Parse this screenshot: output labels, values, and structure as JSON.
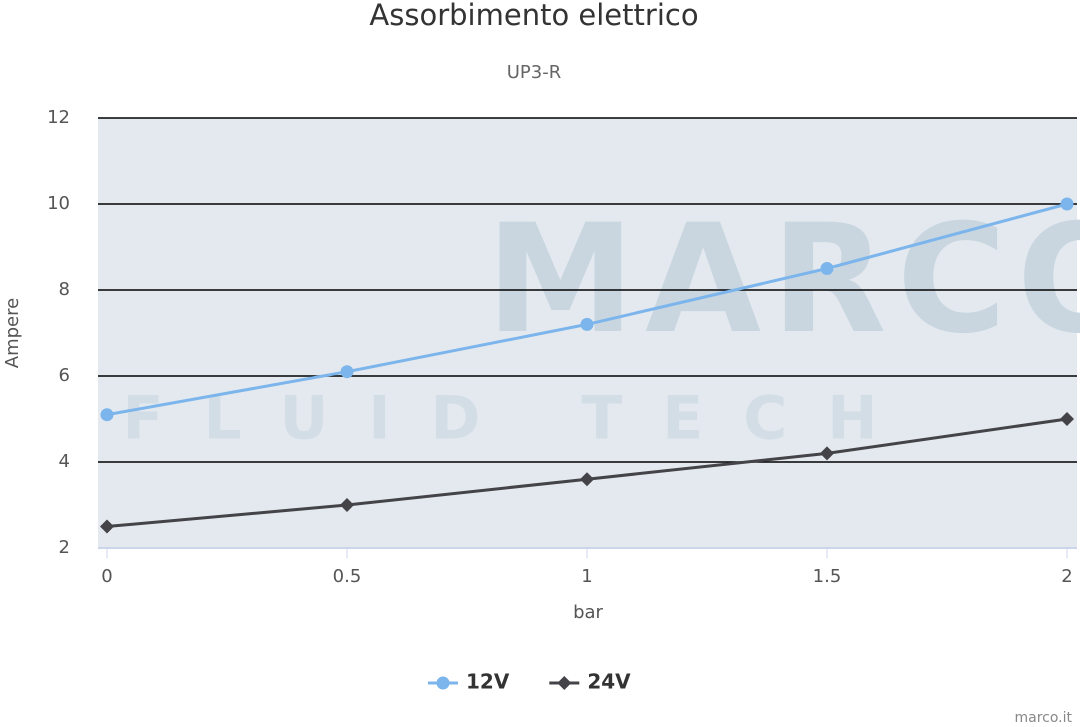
{
  "chart_data": {
    "type": "line",
    "title": "Assorbimento elettrico",
    "subtitle": "UP3-R",
    "x_label": "bar",
    "y_label": "Ampere",
    "x": [
      0,
      0.5,
      1,
      1.5,
      2
    ],
    "series": [
      {
        "name": "12V",
        "color": "#7cb5ec",
        "marker": "circle",
        "values": [
          5.1,
          6.1,
          7.2,
          8.5,
          10
        ]
      },
      {
        "name": "24V",
        "color": "#434348",
        "marker": "diamond",
        "values": [
          2.5,
          3.0,
          3.6,
          4.2,
          5.0
        ]
      }
    ],
    "xlim": [
      0,
      2
    ],
    "xticks": [
      0,
      0.5,
      1,
      1.5,
      2
    ],
    "ylim": [
      2,
      12
    ],
    "yticks": [
      2,
      4,
      6,
      8,
      10,
      12
    ],
    "grid": true,
    "legend": "bottom"
  },
  "watermark": {
    "logo": "MARCO",
    "tagline": "FLUID TECH"
  },
  "credits": "marco.it"
}
